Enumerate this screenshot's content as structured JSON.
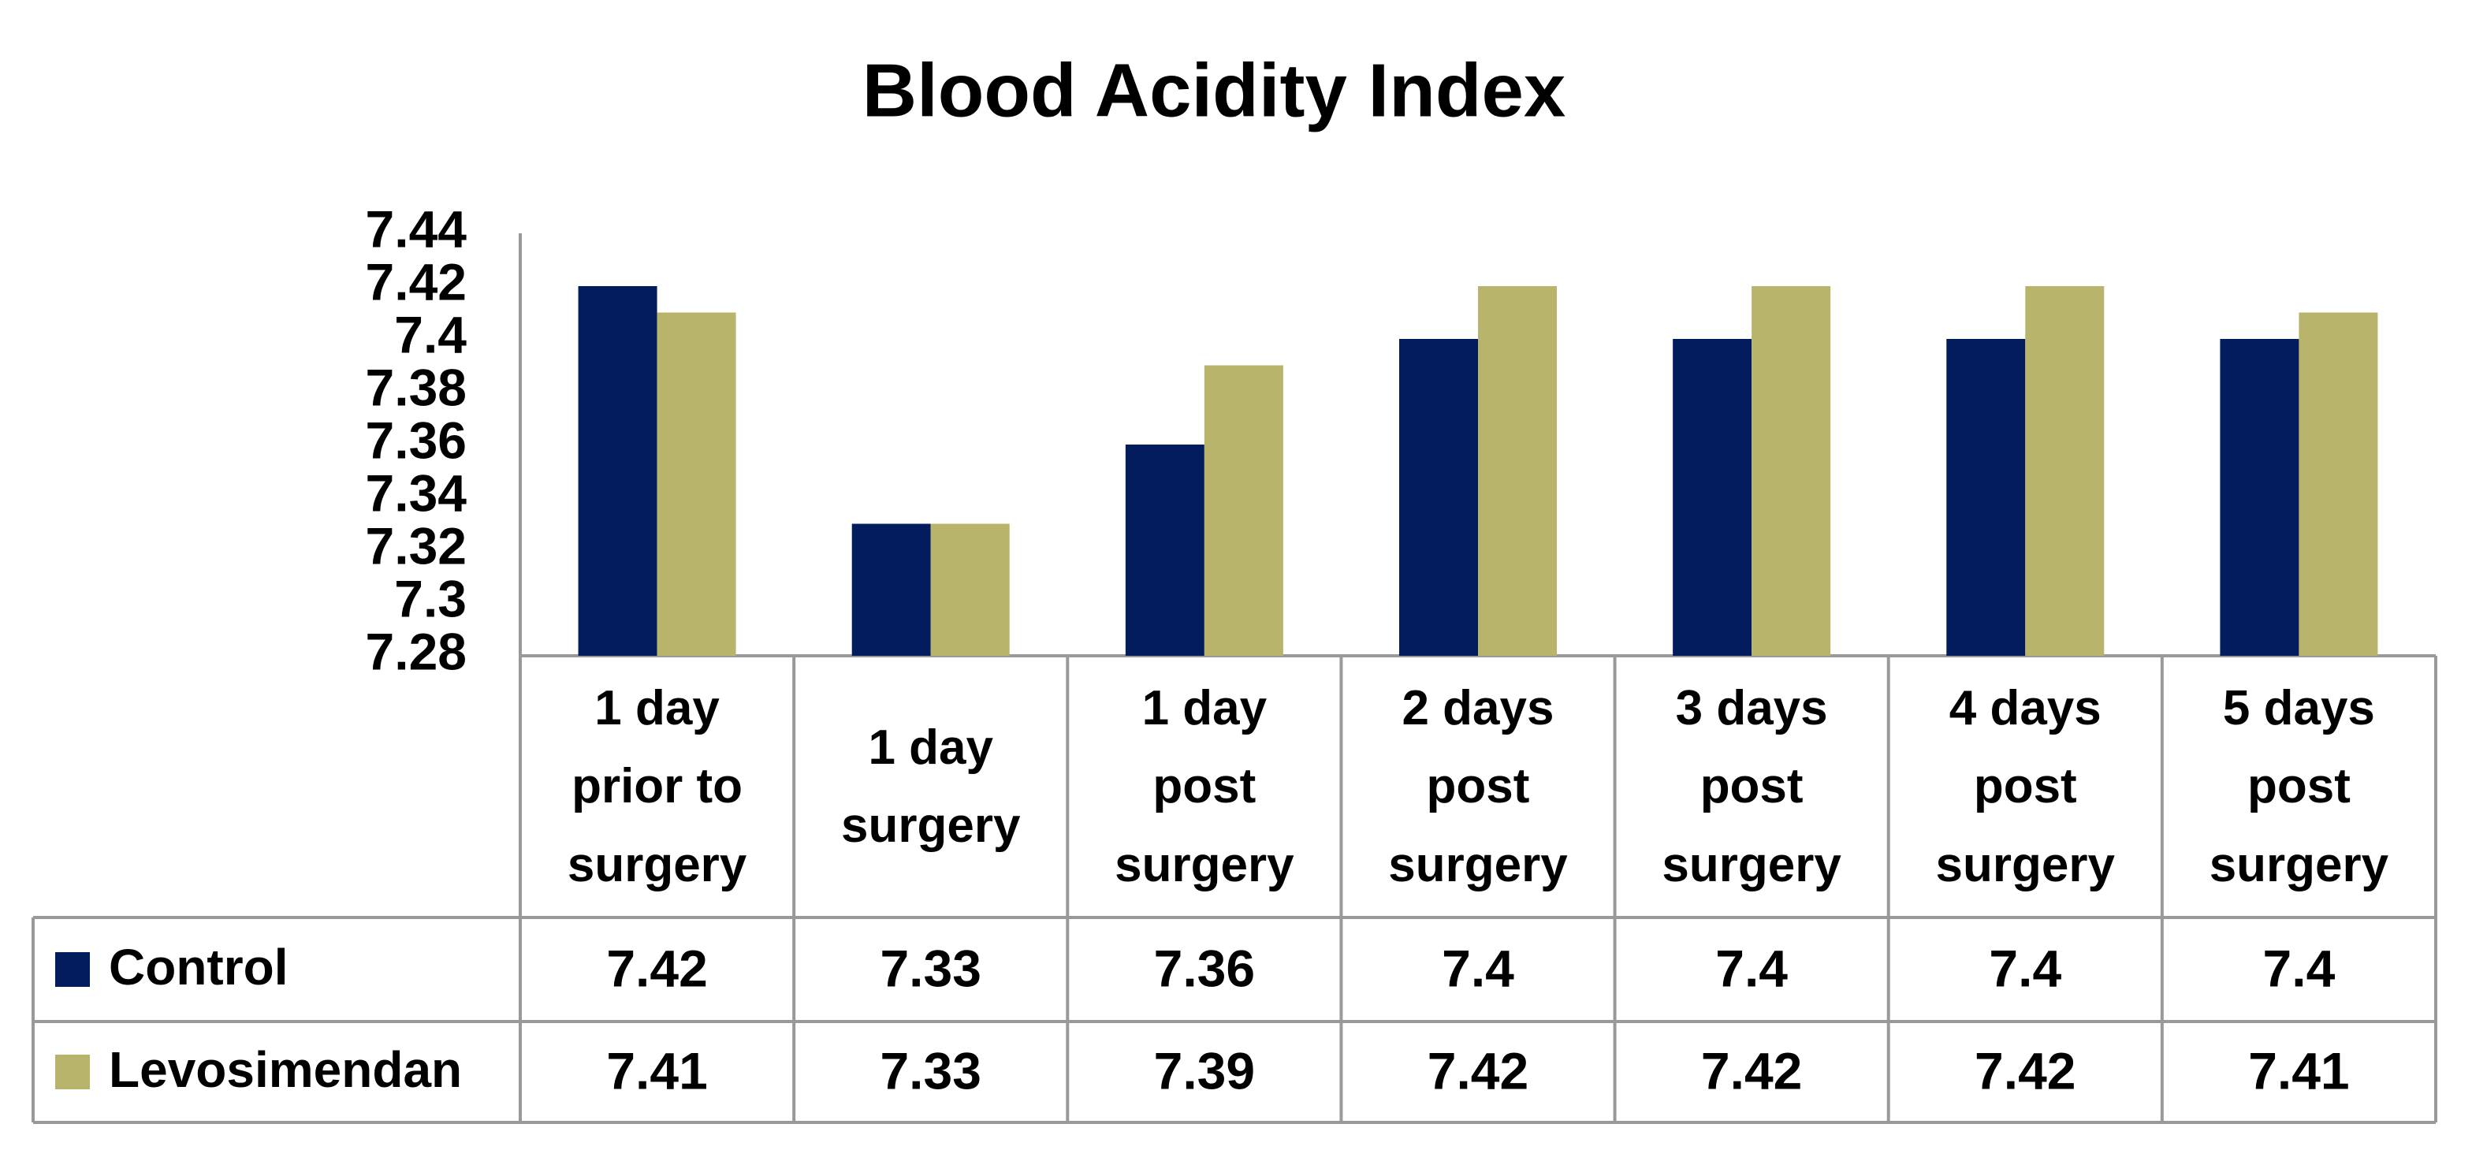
{
  "chart_data": {
    "type": "bar",
    "title": "Blood Acidity Index",
    "categories": [
      "1 day prior to surgery",
      "1 day surgery",
      "1 day post surgery",
      "2 days post surgery",
      "3 days post surgery",
      "4 days post surgery",
      "5 days post surgery"
    ],
    "series": [
      {
        "name": "Control",
        "color": "#031c5e",
        "values": [
          7.42,
          7.33,
          7.36,
          7.4,
          7.4,
          7.4,
          7.4
        ]
      },
      {
        "name": "Levosimendan",
        "color": "#b8b46c",
        "values": [
          7.41,
          7.33,
          7.39,
          7.42,
          7.42,
          7.42,
          7.41
        ]
      }
    ],
    "ylim": [
      7.28,
      7.44
    ],
    "yticks": [
      7.28,
      7.3,
      7.32,
      7.34,
      7.36,
      7.38,
      7.4,
      7.42,
      7.44
    ],
    "grid": false
  }
}
